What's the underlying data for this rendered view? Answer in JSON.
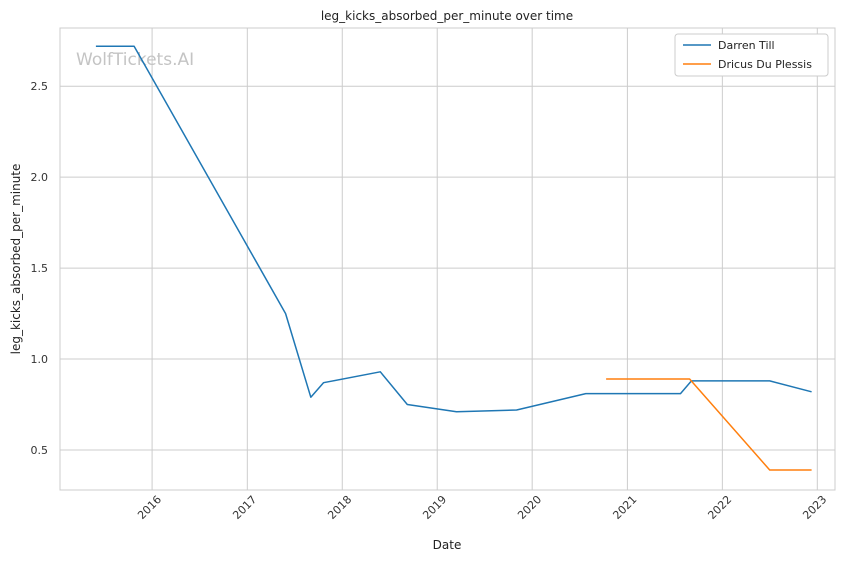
{
  "chart_data": {
    "type": "line",
    "title": "leg_kicks_absorbed_per_minute over time",
    "xlabel": "Date",
    "ylabel": "leg_kicks_absorbed_per_minute",
    "watermark": "WolfTickets.AI",
    "xlim": [
      "2015-01-12",
      "2023-03-10"
    ],
    "ylim": [
      0.28,
      2.82
    ],
    "x_ticks": [
      "2016",
      "2017",
      "2018",
      "2019",
      "2020",
      "2021",
      "2022",
      "2023"
    ],
    "y_ticks": [
      "0.5",
      "1.0",
      "1.5",
      "2.0",
      "2.5"
    ],
    "grid": true,
    "legend_position": "top-right",
    "series": [
      {
        "name": "Darren Till",
        "color": "#1f77b4",
        "points": [
          {
            "x": "2015-05-30",
            "y": 2.72
          },
          {
            "x": "2015-10-24",
            "y": 2.72
          },
          {
            "x": "2017-05-28",
            "y": 1.25
          },
          {
            "x": "2017-09-02",
            "y": 0.79
          },
          {
            "x": "2017-10-21",
            "y": 0.87
          },
          {
            "x": "2018-05-27",
            "y": 0.93
          },
          {
            "x": "2018-09-08",
            "y": 0.75
          },
          {
            "x": "2019-03-16",
            "y": 0.71
          },
          {
            "x": "2019-11-02",
            "y": 0.72
          },
          {
            "x": "2020-07-25",
            "y": 0.81
          },
          {
            "x": "2021-07-24",
            "y": 0.81
          },
          {
            "x": "2021-09-04",
            "y": 0.88
          },
          {
            "x": "2022-07-02",
            "y": 0.88
          },
          {
            "x": "2022-12-10",
            "y": 0.82
          }
        ]
      },
      {
        "name": "Dricus Du Plessis",
        "color": "#ff7f0e",
        "points": [
          {
            "x": "2020-10-11",
            "y": 0.89
          },
          {
            "x": "2021-08-28",
            "y": 0.89
          },
          {
            "x": "2022-07-02",
            "y": 0.39
          },
          {
            "x": "2022-12-10",
            "y": 0.39
          }
        ]
      }
    ]
  }
}
